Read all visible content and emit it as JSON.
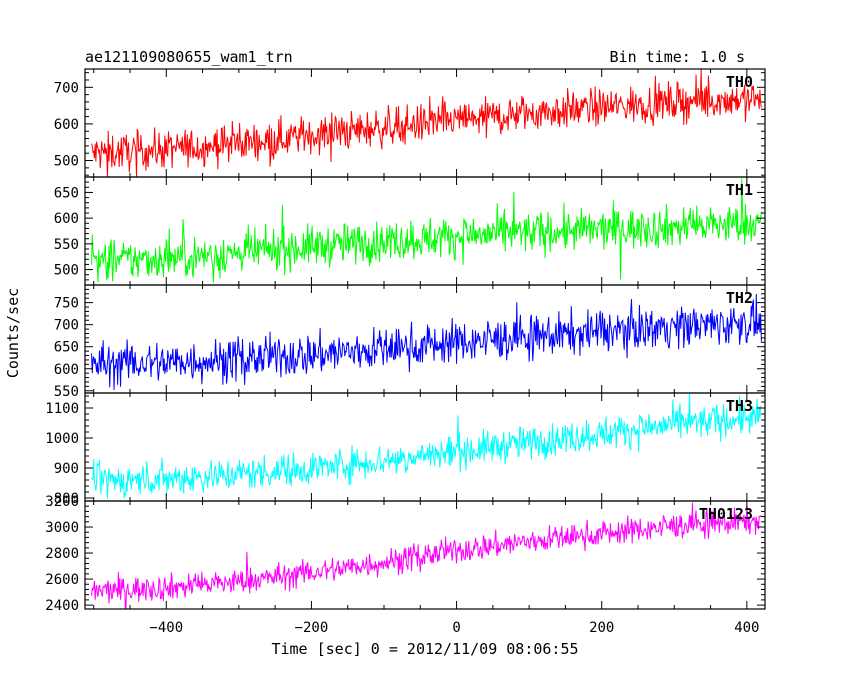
{
  "title_left": "ae121109080655_wam1_trn",
  "title_right": "Bin time: 1.0 s",
  "ylabel": "Counts/sec",
  "xlabel": "Time [sec] 0 = 2012/11/09 08:06:55",
  "chart_data": {
    "type": "line",
    "x_range": [
      -512,
      425
    ],
    "x_ticks": [
      -400,
      -200,
      0,
      200,
      400
    ],
    "x_tick_labels": [
      "−400",
      "−200",
      "0",
      "200",
      "400"
    ],
    "bin_time_s": 1.0,
    "panels": [
      {
        "name": "TH0",
        "color": "#ff0000",
        "ylim": [
          455,
          750
        ],
        "y_ticks": [
          500,
          600,
          700
        ],
        "x_start": -503,
        "x_end": 420,
        "trend": [
          {
            "x": -503,
            "y": 520
          },
          {
            "x": -400,
            "y": 530
          },
          {
            "x": -300,
            "y": 548
          },
          {
            "x": -200,
            "y": 570
          },
          {
            "x": -100,
            "y": 590
          },
          {
            "x": 0,
            "y": 610
          },
          {
            "x": 100,
            "y": 630
          },
          {
            "x": 200,
            "y": 645
          },
          {
            "x": 300,
            "y": 660
          },
          {
            "x": 420,
            "y": 670
          }
        ],
        "noise": 26
      },
      {
        "name": "TH1",
        "color": "#00ff00",
        "ylim": [
          470,
          680
        ],
        "y_ticks": [
          500,
          550,
          600,
          650
        ],
        "x_start": -503,
        "x_end": 420,
        "trend": [
          {
            "x": -503,
            "y": 515
          },
          {
            "x": -400,
            "y": 522
          },
          {
            "x": -300,
            "y": 532
          },
          {
            "x": -200,
            "y": 545
          },
          {
            "x": -100,
            "y": 555
          },
          {
            "x": 0,
            "y": 565
          },
          {
            "x": 100,
            "y": 572
          },
          {
            "x": 200,
            "y": 578
          },
          {
            "x": 300,
            "y": 583
          },
          {
            "x": 420,
            "y": 590
          }
        ],
        "noise": 20
      },
      {
        "name": "TH2",
        "color": "#0000ff",
        "ylim": [
          545,
          790
        ],
        "y_ticks": [
          550,
          600,
          650,
          700,
          750
        ],
        "x_start": -503,
        "x_end": 420,
        "trend": [
          {
            "x": -503,
            "y": 610
          },
          {
            "x": -400,
            "y": 615
          },
          {
            "x": -300,
            "y": 622
          },
          {
            "x": -200,
            "y": 632
          },
          {
            "x": -100,
            "y": 645
          },
          {
            "x": 0,
            "y": 660
          },
          {
            "x": 100,
            "y": 672
          },
          {
            "x": 200,
            "y": 685
          },
          {
            "x": 300,
            "y": 697
          },
          {
            "x": 420,
            "y": 705
          }
        ],
        "noise": 24
      },
      {
        "name": "TH3",
        "color": "#00ffff",
        "ylim": [
          790,
          1150
        ],
        "y_ticks": [
          800,
          900,
          1000,
          1100
        ],
        "x_start": -503,
        "x_end": 420,
        "trend": [
          {
            "x": -503,
            "y": 855
          },
          {
            "x": -400,
            "y": 865
          },
          {
            "x": -300,
            "y": 880
          },
          {
            "x": -200,
            "y": 900
          },
          {
            "x": -100,
            "y": 925
          },
          {
            "x": 0,
            "y": 955
          },
          {
            "x": 100,
            "y": 985
          },
          {
            "x": 200,
            "y": 1015
          },
          {
            "x": 300,
            "y": 1045
          },
          {
            "x": 420,
            "y": 1070
          }
        ],
        "noise": 28
      },
      {
        "name": "TH0123",
        "color": "#ff00ff",
        "ylim": [
          2370,
          3200
        ],
        "y_ticks": [
          2400,
          2600,
          2800,
          3000,
          3200
        ],
        "x_start": -503,
        "x_end": 420,
        "trend": [
          {
            "x": -503,
            "y": 2505
          },
          {
            "x": -400,
            "y": 2535
          },
          {
            "x": -300,
            "y": 2580
          },
          {
            "x": -200,
            "y": 2650
          },
          {
            "x": -100,
            "y": 2730
          },
          {
            "x": 0,
            "y": 2820
          },
          {
            "x": 100,
            "y": 2890
          },
          {
            "x": 200,
            "y": 2950
          },
          {
            "x": 300,
            "y": 3010
          },
          {
            "x": 420,
            "y": 3050
          }
        ],
        "noise": 50
      }
    ]
  }
}
